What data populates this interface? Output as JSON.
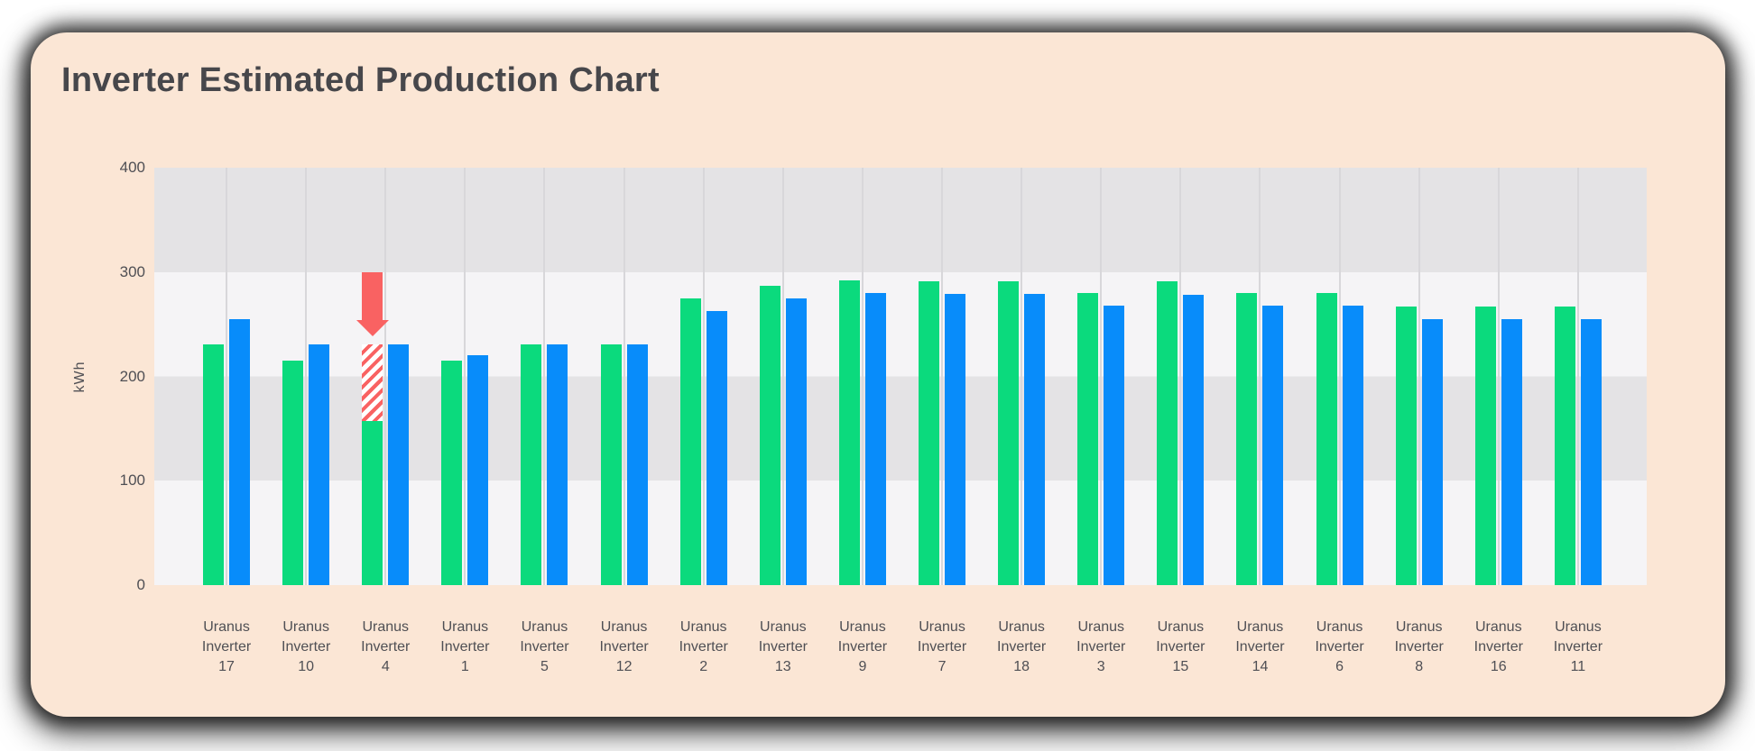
{
  "theme": {
    "card_bg": "#FBE6D5",
    "title_color": "#47474B",
    "axis_text": "#4F4F54",
    "gridline": "#D8D7DA",
    "band_dark": "#E4E3E5",
    "band_light": "#F5F4F6",
    "series_green": "#0BDA7D",
    "series_blue": "#088CFA",
    "annotation_red": "#F96262"
  },
  "chart_data": {
    "type": "bar",
    "title": "Inverter Estimated Production Chart",
    "xlabel": "",
    "ylabel": "kWh",
    "ylim": [
      0,
      400
    ],
    "yticks": [
      400,
      300,
      200,
      100,
      0
    ],
    "legend": "none",
    "grid": {
      "horizontal_bands": true,
      "vertical_split_lines": true
    },
    "categories": [
      "Uranus Inverter 17",
      "Uranus Inverter 10",
      "Uranus Inverter 4",
      "Uranus Inverter 1",
      "Uranus Inverter 5",
      "Uranus Inverter 12",
      "Uranus Inverter 2",
      "Uranus Inverter 13",
      "Uranus Inverter 9",
      "Uranus Inverter 7",
      "Uranus Inverter 18",
      "Uranus Inverter 3",
      "Uranus Inverter 15",
      "Uranus Inverter 14",
      "Uranus Inverter 6",
      "Uranus Inverter 8",
      "Uranus Inverter 16",
      "Uranus Inverter 11"
    ],
    "series": [
      {
        "name": "green",
        "color": "#0BDA7D",
        "values": [
          231,
          215,
          157,
          215,
          231,
          231,
          275,
          287,
          292,
          291,
          291,
          280,
          291,
          280,
          280,
          267,
          267,
          267
        ]
      },
      {
        "name": "blue",
        "color": "#088CFA",
        "values": [
          255,
          231,
          231,
          220,
          231,
          231,
          263,
          275,
          280,
          279,
          279,
          268,
          278,
          268,
          268,
          255,
          255,
          255
        ]
      }
    ],
    "annotation": {
      "category": "Uranus Inverter 4",
      "series": "green",
      "type": "down-arrow-with-hatched-deficit",
      "expected_value": 231,
      "actual_value": 157,
      "deficit": 74,
      "color": "#F96262"
    }
  }
}
